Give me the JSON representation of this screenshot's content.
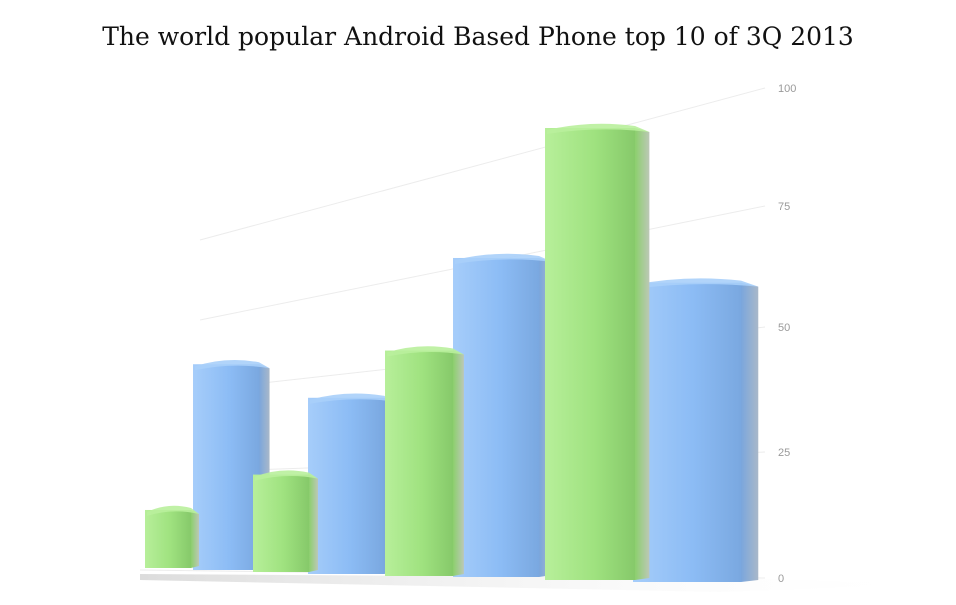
{
  "chart_data": {
    "type": "bar",
    "title": "The world popular Android Based Phone top 10 of 3Q 2013",
    "xlabel": "",
    "ylabel": "",
    "ylim": [
      0,
      100
    ],
    "yticks": [
      "0",
      "25",
      "50",
      "75",
      "100"
    ],
    "grid": true,
    "legend": "none",
    "categories": [
      "",
      "",
      "",
      ""
    ],
    "series": [
      {
        "values": [
          13,
          21,
          47,
          93
        ],
        "color": "#9fe27f"
      },
      {
        "values": [
          43,
          37,
          66,
          62
        ],
        "color": "#8cbcf5"
      }
    ]
  }
}
